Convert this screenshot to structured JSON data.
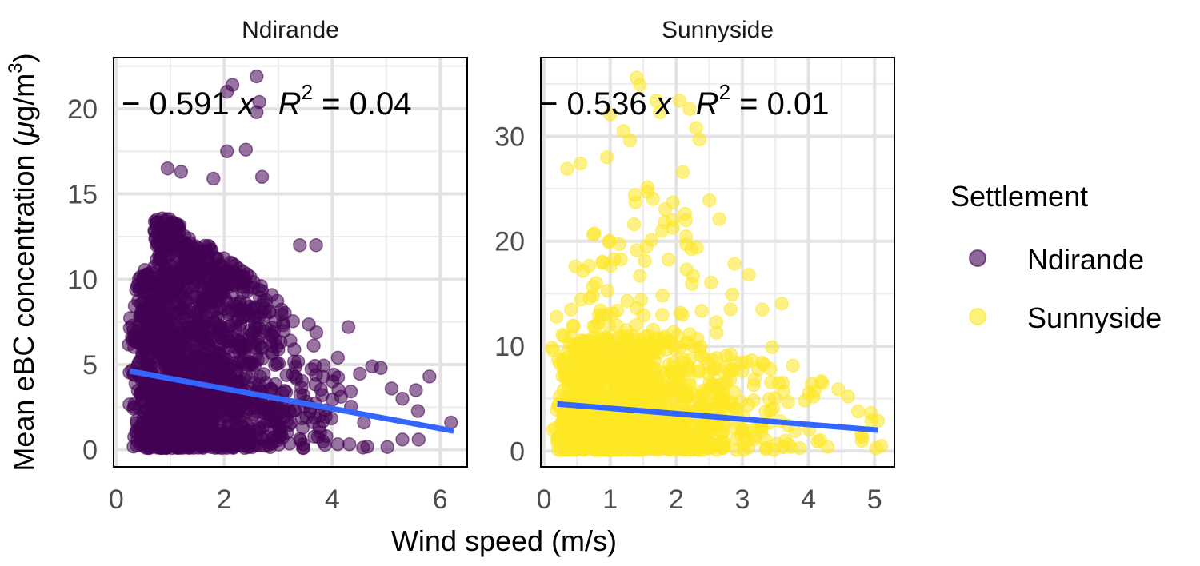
{
  "chart_data": {
    "type": "scatter",
    "ylabel": "Mean eBC concentration (μg/m³)",
    "ylabel_parts": {
      "pre": "Mean eBC concentration (",
      "mu": "μ",
      "post": "g/m",
      "sup": "3",
      "close": ")"
    },
    "xlabel": "Wind speed (m/s)",
    "grid": true,
    "legend": {
      "title": "Settlement",
      "position": "right",
      "entries": [
        {
          "name": "Ndirande",
          "color": "#440154"
        },
        {
          "name": "Sunnyside",
          "color": "#FDE725"
        }
      ]
    },
    "line_color": "#3366FF",
    "panels": [
      {
        "title": "Ndirande",
        "series_name": "Ndirande",
        "color": "#440154",
        "xlim": [
          -0.05,
          6.5
        ],
        "ylim": [
          -1.0,
          23.0
        ],
        "xticks": [
          0,
          2,
          4,
          6
        ],
        "yticks": [
          0,
          5,
          10,
          15,
          20
        ],
        "xtick_labels": [
          "0",
          "2",
          "4",
          "6"
        ],
        "ytick_labels": [
          "0",
          "5",
          "10",
          "15",
          "20"
        ],
        "fit": {
          "x": [
            0.25,
            6.25
          ],
          "y": [
            4.62,
            1.1
          ]
        },
        "equation": {
          "slope_text": "− 0.591 ",
          "x_sym": "x",
          "r_sym": "R",
          "r_sup": "2",
          "r_val": " = 0.04"
        },
        "points_summary": "dense cluster, wind 0.2–6.2 m/s, eBC 0–22",
        "outliers": [
          {
            "x": 2.15,
            "y": 21.4
          },
          {
            "x": 2.05,
            "y": 21.0
          },
          {
            "x": 2.6,
            "y": 21.9
          },
          {
            "x": 2.65,
            "y": 20.4
          },
          {
            "x": 2.6,
            "y": 19.8
          },
          {
            "x": 2.05,
            "y": 17.5
          },
          {
            "x": 2.4,
            "y": 17.6
          },
          {
            "x": 0.95,
            "y": 16.5
          },
          {
            "x": 1.2,
            "y": 16.3
          },
          {
            "x": 2.7,
            "y": 16.0
          },
          {
            "x": 1.8,
            "y": 15.9
          },
          {
            "x": 6.2,
            "y": 1.6
          },
          {
            "x": 5.8,
            "y": 4.3
          },
          {
            "x": 5.55,
            "y": 3.5
          },
          {
            "x": 3.7,
            "y": 12.0
          },
          {
            "x": 3.4,
            "y": 12.0
          },
          {
            "x": 4.3,
            "y": 7.2
          },
          {
            "x": 5.3,
            "y": 3.0
          },
          {
            "x": 4.9,
            "y": 4.8
          },
          {
            "x": 5.1,
            "y": 3.6
          },
          {
            "x": 5.6,
            "y": 0.6
          },
          {
            "x": 5.3,
            "y": 0.6
          }
        ]
      },
      {
        "title": "Sunnyside",
        "series_name": "Sunnyside",
        "color": "#FDE725",
        "xlim": [
          -0.05,
          5.3
        ],
        "ylim": [
          -1.5,
          37.5
        ],
        "xticks": [
          0,
          1,
          2,
          3,
          4,
          5
        ],
        "yticks": [
          0,
          10,
          20,
          30
        ],
        "xtick_labels": [
          "0",
          "1",
          "2",
          "3",
          "4",
          "5"
        ],
        "ytick_labels": [
          "0",
          "10",
          "20",
          "30"
        ],
        "fit": {
          "x": [
            0.2,
            5.05
          ],
          "y": [
            4.5,
            2.0
          ]
        },
        "equation": {
          "slope_text": "− 0.536 ",
          "x_sym": "x",
          "r_sym": "R",
          "r_sup": "2",
          "r_val": " = 0.01"
        },
        "points_summary": "wind 0.1–5.1 m/s, eBC 0–36",
        "outliers": [
          {
            "x": 1.4,
            "y": 35.6
          },
          {
            "x": 1.45,
            "y": 34.9
          },
          {
            "x": 1.7,
            "y": 33.4
          },
          {
            "x": 2.05,
            "y": 33.4
          },
          {
            "x": 2.2,
            "y": 32.6
          },
          {
            "x": 1.75,
            "y": 32.3
          },
          {
            "x": 1.0,
            "y": 32.1
          },
          {
            "x": 1.2,
            "y": 30.5
          },
          {
            "x": 2.3,
            "y": 30.8
          },
          {
            "x": 2.35,
            "y": 29.7
          },
          {
            "x": 1.3,
            "y": 29.6
          },
          {
            "x": 0.95,
            "y": 28.0
          },
          {
            "x": 2.1,
            "y": 26.6
          },
          {
            "x": 2.5,
            "y": 23.9
          },
          {
            "x": 2.65,
            "y": 22.1
          },
          {
            "x": 1.95,
            "y": 23.7
          },
          {
            "x": 0.35,
            "y": 26.9
          },
          {
            "x": 0.55,
            "y": 27.4
          },
          {
            "x": 3.1,
            "y": 16.8
          },
          {
            "x": 3.3,
            "y": 13.5
          },
          {
            "x": 3.45,
            "y": 9.9
          },
          {
            "x": 4.05,
            "y": 6.4
          },
          {
            "x": 4.45,
            "y": 5.9
          },
          {
            "x": 4.6,
            "y": 5.2
          },
          {
            "x": 4.75,
            "y": 3.8
          },
          {
            "x": 4.95,
            "y": 2.9
          },
          {
            "x": 5.05,
            "y": 2.9
          },
          {
            "x": 5.1,
            "y": 0.5
          },
          {
            "x": 4.8,
            "y": 1.6
          }
        ]
      }
    ]
  }
}
